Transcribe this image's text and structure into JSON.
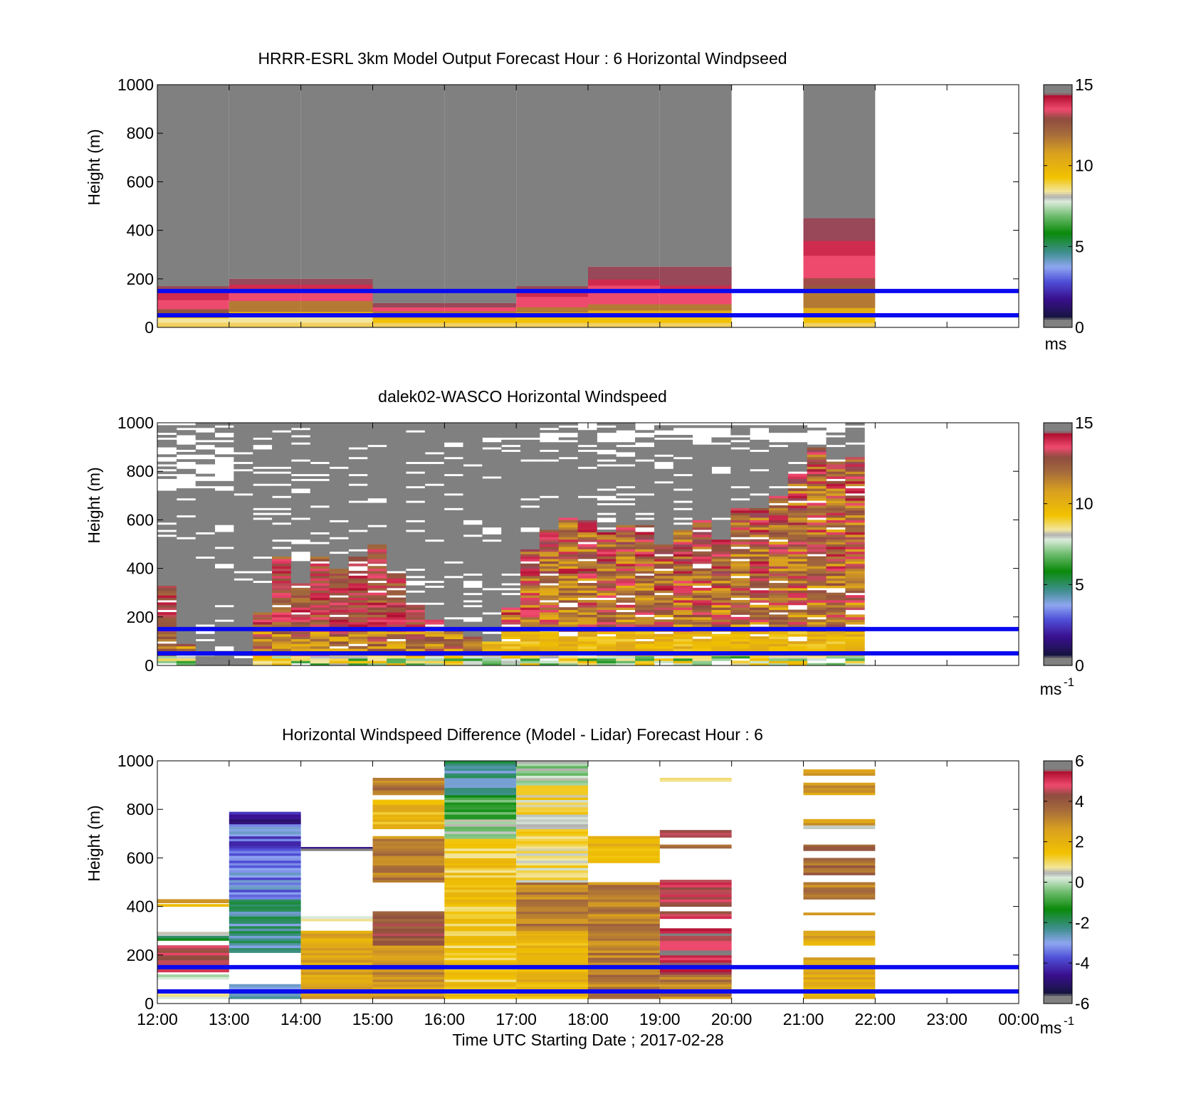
{
  "x_tick_labels": [
    "12:00",
    "13:00",
    "14:00",
    "15:00",
    "16:00",
    "17:00",
    "18:00",
    "19:00",
    "20:00",
    "21:00",
    "22:00",
    "23:00",
    "00:00"
  ],
  "x_axis_label": "Time UTC  Starting Date ; 2017-02-28",
  "guide_line_color": "#0a0af0",
  "colors": {
    "gray": "#808080",
    "blue_line": "#0a0af0"
  },
  "chart_data": [
    {
      "type": "heatmap",
      "title": "HRRR-ESRL 3km Model Output   Forecast Hour : 6 Horizontal Windpseed",
      "ylabel": "Height (m)",
      "ylim": [
        0,
        1000
      ],
      "y_ticks": [
        "0",
        "200",
        "400",
        "600",
        "800",
        "1000"
      ],
      "xlim_hours": [
        12,
        24
      ],
      "colorbar": {
        "min": 0,
        "max": 15,
        "ticks": [
          "0",
          "5",
          "10",
          "15"
        ],
        "unit": "ms"
      },
      "guide_lines_m": [
        50,
        150
      ],
      "columns": [
        {
          "t0": 12,
          "t1": 13,
          "top_m": 170,
          "profile": [
            8.5,
            10,
            13,
            14,
            14,
            14.5,
            14.5,
            15
          ]
        },
        {
          "t0": 13,
          "t1": 14,
          "top_m": 200,
          "profile": [
            8.5,
            10,
            12,
            12,
            14,
            14,
            14.5,
            15
          ]
        },
        {
          "t0": 14,
          "t1": 15,
          "top_m": 200,
          "profile": [
            8.5,
            10,
            12,
            12,
            14,
            14,
            14.5,
            15
          ]
        },
        {
          "t0": 15,
          "t1": 16,
          "top_m": 100,
          "profile": [
            9.5,
            10.5,
            12,
            14,
            15
          ]
        },
        {
          "t0": 16,
          "t1": 17,
          "top_m": 100,
          "profile": [
            9.5,
            10.5,
            12,
            14,
            15
          ]
        },
        {
          "t0": 17,
          "t1": 18,
          "top_m": 170,
          "profile": [
            9.5,
            10.5,
            12,
            14,
            14,
            14.5,
            15
          ]
        },
        {
          "t0": 18,
          "t1": 19,
          "top_m": 250,
          "profile": [
            9.5,
            10.5,
            12,
            14,
            14,
            14,
            14.5,
            15,
            15
          ]
        },
        {
          "t0": 19,
          "t1": 20,
          "top_m": 250,
          "profile": [
            9.5,
            10.5,
            12,
            14,
            14,
            14.5,
            15,
            15,
            15
          ]
        },
        {
          "t0": 21,
          "t1": 22,
          "top_m": 450,
          "profile": [
            9.5,
            10.5,
            12,
            12,
            13,
            13.5,
            14,
            14,
            14,
            14.5,
            14.5,
            15,
            15,
            15
          ]
        }
      ]
    },
    {
      "type": "heatmap",
      "title": "dalek02-WASCO  Horizontal Windspeed",
      "ylabel": "Height (m)",
      "ylim": [
        0,
        1000
      ],
      "y_ticks": [
        "0",
        "200",
        "400",
        "600",
        "800",
        "1000"
      ],
      "xlim_hours": [
        12,
        24
      ],
      "colorbar": {
        "min": 0,
        "max": 15,
        "ticks": [
          "0",
          "5",
          "10",
          "15"
        ],
        "unit": "ms",
        "unit_exp": "-1"
      },
      "guide_lines_m": [
        50,
        150
      ],
      "data_end_hour": 21.85,
      "columns_per_hour": 4,
      "color_top_m": [
        330,
        90,
        0,
        0,
        0,
        220,
        450,
        340,
        450,
        400,
        450,
        500,
        380,
        250,
        190,
        150,
        120,
        100,
        240,
        480,
        560,
        610,
        600,
        550,
        580,
        580,
        500,
        560,
        600,
        520,
        650,
        650,
        700,
        800,
        900,
        850,
        860
      ]
    },
    {
      "type": "heatmap",
      "title": "Horizontal Windspeed Difference (Model - Lidar) Forecast Hour : 6",
      "ylabel": "Height (m)",
      "ylim": [
        0,
        1000
      ],
      "y_ticks": [
        "0",
        "200",
        "400",
        "600",
        "800",
        "1000"
      ],
      "xlim_hours": [
        12,
        24
      ],
      "colorbar": {
        "min": -6,
        "max": 6,
        "ticks": [
          "-6",
          "-4",
          "-2",
          "0",
          "2",
          "4",
          "6"
        ],
        "unit": "ms",
        "unit_exp": "-1"
      },
      "guide_lines_m": [
        50,
        150
      ],
      "segments": [
        {
          "t0": 12,
          "t1": 13,
          "y0": 20,
          "y1": 40,
          "v": 1
        },
        {
          "t0": 12,
          "t1": 13,
          "y0": 100,
          "y1": 120,
          "v": 0.5
        },
        {
          "t0": 12,
          "t1": 13,
          "y0": 130,
          "y1": 240,
          "v": 5
        },
        {
          "t0": 12,
          "t1": 13,
          "y0": 260,
          "y1": 280,
          "v": -2
        },
        {
          "t0": 12,
          "t1": 13,
          "y0": 280,
          "y1": 295,
          "v": 1
        },
        {
          "t0": 12,
          "t1": 13,
          "y0": 400,
          "y1": 410,
          "v": 1.5
        },
        {
          "t0": 12,
          "t1": 13,
          "y0": 415,
          "y1": 430,
          "v": 3
        },
        {
          "t0": 13,
          "t1": 14,
          "y0": 20,
          "y1": 80,
          "v": -2.5
        },
        {
          "t0": 13,
          "t1": 14,
          "y0": 210,
          "y1": 430,
          "v": -2.5
        },
        {
          "t0": 13,
          "t1": 14,
          "y0": 430,
          "y1": 560,
          "v": -3.5
        },
        {
          "t0": 13,
          "t1": 14,
          "y0": 560,
          "y1": 690,
          "v": -4
        },
        {
          "t0": 13,
          "t1": 14,
          "y0": 690,
          "y1": 740,
          "v": -3
        },
        {
          "t0": 13,
          "t1": 14,
          "y0": 740,
          "y1": 790,
          "v": -5
        },
        {
          "t0": 14,
          "t1": 15,
          "y0": 630,
          "y1": 645,
          "v": -5.8
        },
        {
          "t0": 14,
          "t1": 15,
          "y0": 20,
          "y1": 300,
          "v": 2.5
        },
        {
          "t0": 14,
          "t1": 15,
          "y0": 340,
          "y1": 360,
          "v": 0.5
        },
        {
          "t0": 15,
          "t1": 16,
          "y0": 20,
          "y1": 240,
          "v": 3
        },
        {
          "t0": 15,
          "t1": 16,
          "y0": 240,
          "y1": 380,
          "v": 4.5
        },
        {
          "t0": 15,
          "t1": 16,
          "y0": 500,
          "y1": 690,
          "v": 3.5
        },
        {
          "t0": 15,
          "t1": 16,
          "y0": 720,
          "y1": 840,
          "v": 2
        },
        {
          "t0": 15,
          "t1": 16,
          "y0": 860,
          "y1": 930,
          "v": 3.5
        },
        {
          "t0": 16,
          "t1": 17,
          "y0": 20,
          "y1": 680,
          "v": 1.5
        },
        {
          "t0": 16,
          "t1": 17,
          "y0": 680,
          "y1": 760,
          "v": 0
        },
        {
          "t0": 16,
          "t1": 17,
          "y0": 760,
          "y1": 860,
          "v": -1
        },
        {
          "t0": 16,
          "t1": 17,
          "y0": 860,
          "y1": 1000,
          "v": -2.5
        },
        {
          "t0": 17,
          "t1": 18,
          "y0": 20,
          "y1": 300,
          "v": 2
        },
        {
          "t0": 17,
          "t1": 18,
          "y0": 300,
          "y1": 500,
          "v": 3.5
        },
        {
          "t0": 17,
          "t1": 18,
          "y0": 500,
          "y1": 900,
          "v": 1
        },
        {
          "t0": 17,
          "t1": 18,
          "y0": 900,
          "y1": 1000,
          "v": 0
        },
        {
          "t0": 18,
          "t1": 19,
          "y0": 20,
          "y1": 500,
          "v": 3.5
        },
        {
          "t0": 18,
          "t1": 19,
          "y0": 580,
          "y1": 690,
          "v": 2
        },
        {
          "t0": 19,
          "t1": 20,
          "y0": 20,
          "y1": 120,
          "v": 3.5
        },
        {
          "t0": 19,
          "t1": 20,
          "y0": 120,
          "y1": 310,
          "v": 5.5
        },
        {
          "t0": 19,
          "t1": 20,
          "y0": 350,
          "y1": 380,
          "v": 5
        },
        {
          "t0": 19,
          "t1": 20,
          "y0": 400,
          "y1": 510,
          "v": 5
        },
        {
          "t0": 19,
          "t1": 20,
          "y0": 640,
          "y1": 655,
          "v": 4
        },
        {
          "t0": 19,
          "t1": 20,
          "y0": 685,
          "y1": 715,
          "v": 5
        },
        {
          "t0": 19,
          "t1": 20,
          "y0": 915,
          "y1": 930,
          "v": 1
        },
        {
          "t0": 21,
          "t1": 22,
          "y0": 20,
          "y1": 190,
          "v": 2.5
        },
        {
          "t0": 21,
          "t1": 22,
          "y0": 240,
          "y1": 300,
          "v": 2.5
        },
        {
          "t0": 21,
          "t1": 22,
          "y0": 365,
          "y1": 375,
          "v": 2.5
        },
        {
          "t0": 21,
          "t1": 22,
          "y0": 430,
          "y1": 500,
          "v": 3.5
        },
        {
          "t0": 21,
          "t1": 22,
          "y0": 530,
          "y1": 600,
          "v": 4
        },
        {
          "t0": 21,
          "t1": 22,
          "y0": 630,
          "y1": 655,
          "v": 4
        },
        {
          "t0": 21,
          "t1": 22,
          "y0": 720,
          "y1": 735,
          "v": 0
        },
        {
          "t0": 21,
          "t1": 22,
          "y0": 735,
          "y1": 760,
          "v": 3
        },
        {
          "t0": 21,
          "t1": 22,
          "y0": 860,
          "y1": 910,
          "v": 3
        },
        {
          "t0": 21,
          "t1": 22,
          "y0": 940,
          "y1": 965,
          "v": 3
        }
      ]
    }
  ]
}
